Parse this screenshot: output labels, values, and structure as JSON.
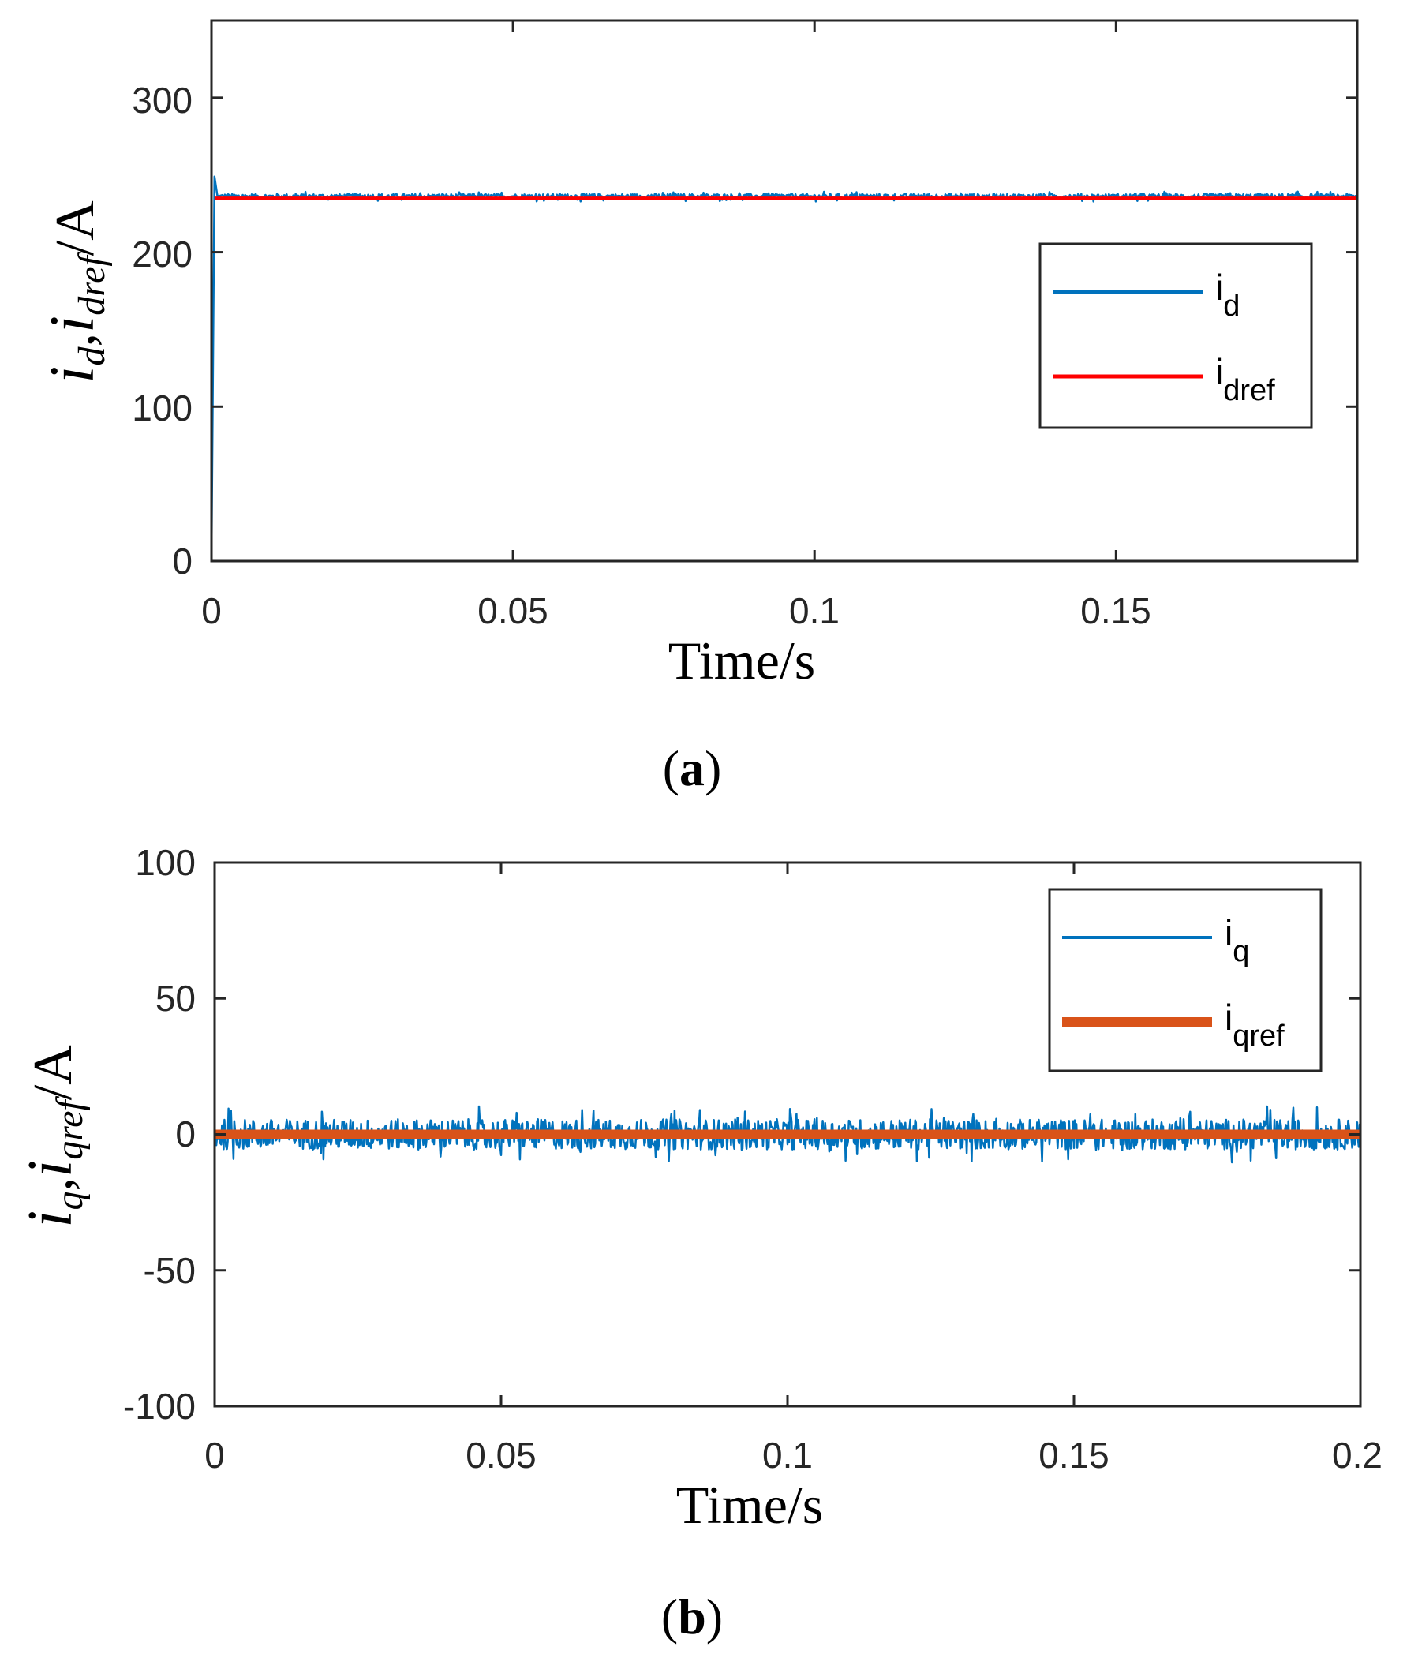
{
  "chart_data": [
    {
      "type": "line",
      "panel": "a",
      "caption_letter": "a",
      "xlabel": "Time/s",
      "ylabel": {
        "i1": "i",
        "s1": "d",
        "sep": ",",
        "i2": "i",
        "s2": "dref",
        "unit": "/A"
      },
      "xlim": [
        0,
        0.19
      ],
      "ylim": [
        0,
        350
      ],
      "xticks": [
        0,
        0.05,
        0.1,
        0.15
      ],
      "xtick_labels": [
        "0",
        "0.05",
        "0.1",
        "0.15"
      ],
      "yticks": [
        0,
        100,
        200,
        300
      ],
      "ytick_labels": [
        "0",
        "100",
        "200",
        "300"
      ],
      "legend_position": "right",
      "series": [
        {
          "name": "i",
          "sub": "d",
          "color": "#0072BD",
          "kind": "measured",
          "x": [
            0,
            0.0005,
            0.001,
            0.19
          ],
          "values": [
            0,
            249,
            236,
            236
          ],
          "noise": 2.5
        },
        {
          "name": "i",
          "sub": "dref",
          "color": "#FF0000",
          "kind": "reference",
          "x": [
            0.0005,
            0.19
          ],
          "values": [
            235,
            235
          ],
          "noise": 0
        }
      ]
    },
    {
      "type": "line",
      "panel": "b",
      "caption_letter": "b",
      "xlabel": "Time/s",
      "ylabel": {
        "i1": "i",
        "s1": "q",
        "sep": ",",
        "i2": "i",
        "s2": "qref",
        "unit": "/A"
      },
      "xlim": [
        0,
        0.2
      ],
      "ylim": [
        -100,
        100
      ],
      "xticks": [
        0,
        0.05,
        0.1,
        0.15,
        0.2
      ],
      "xtick_labels": [
        "0",
        "0.05",
        "0.1",
        "0.15",
        "0.2"
      ],
      "yticks": [
        -100,
        -50,
        0,
        50,
        100
      ],
      "ytick_labels": [
        "-100",
        "-50",
        "0",
        "50",
        "100"
      ],
      "legend_position": "top-right",
      "series": [
        {
          "name": "i",
          "sub": "q",
          "color": "#0072BD",
          "kind": "measured",
          "x": [
            0,
            0.2
          ],
          "values": [
            0,
            0
          ],
          "noise": 8
        },
        {
          "name": "i",
          "sub": "qref",
          "color": "#D95319",
          "kind": "reference",
          "x": [
            0,
            0.2
          ],
          "values": [
            0,
            0
          ],
          "noise": 0
        }
      ]
    }
  ]
}
